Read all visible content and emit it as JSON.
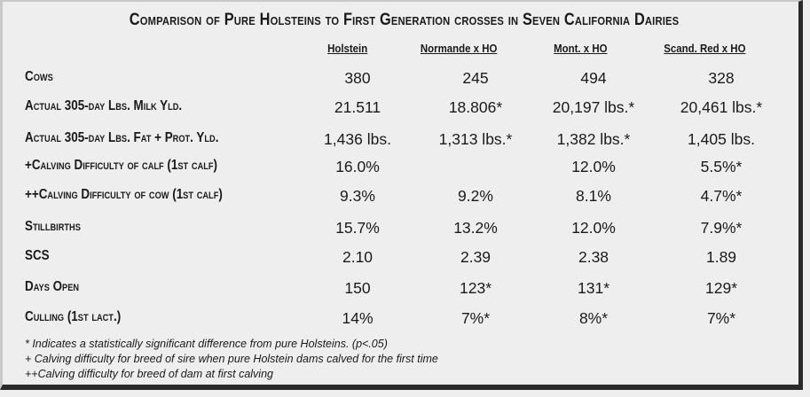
{
  "title": "Comparison of Pure Holsteins to First Generation crosses in Seven California Dairies",
  "columns": [
    "Holstein",
    "Normande x HO",
    "Mont. x HO",
    "Scand. Red x HO"
  ],
  "rows": [
    {
      "label": "Cows",
      "values": [
        "380",
        "245",
        "494",
        "328"
      ]
    },
    {
      "label": "Actual 305-day Lbs. Milk Yld.",
      "values": [
        "21.511",
        "18.806*",
        "20,197 lbs.*",
        "20,461 lbs.*"
      ]
    },
    {
      "label": "Actual 305-day Lbs. Fat + Prot. Yld.",
      "values": [
        "1,436 lbs.",
        "1,313 lbs.*",
        "1,382 lbs.*",
        "1,405 lbs."
      ]
    },
    {
      "label": "+Calving Difficulty of calf (1st calf)",
      "values": [
        "16.0%",
        "",
        "12.0%",
        "5.5%*"
      ]
    },
    {
      "label": "++Calving Difficulty of cow (1st calf)",
      "values": [
        "9.3%",
        "9.2%",
        "8.1%",
        "4.7%*"
      ]
    },
    {
      "label": "Stillbirths",
      "values": [
        "15.7%",
        "13.2%",
        "12.0%",
        "7.9%*"
      ]
    },
    {
      "label": "SCS",
      "values": [
        "2.10",
        "2.39",
        "2.38",
        "1.89"
      ]
    },
    {
      "label": "Days Open",
      "values": [
        "150",
        "123*",
        "131*",
        "129*"
      ]
    },
    {
      "label": "Culling (1st lact.)",
      "values": [
        "14%",
        "7%*",
        "8%*",
        "7%*"
      ]
    }
  ],
  "footnotes": [
    "* Indicates a statistically significant difference from pure Holsteins. (p<.05)",
    "+ Calving difficulty for breed of sire when pure Holstein dams calved for the first time",
    "++Calving difficulty for breed of dam at first calving"
  ],
  "colors": {
    "background": "#eeeeee",
    "text": "#1a1a1a",
    "shadow": "#2a2a2a"
  }
}
